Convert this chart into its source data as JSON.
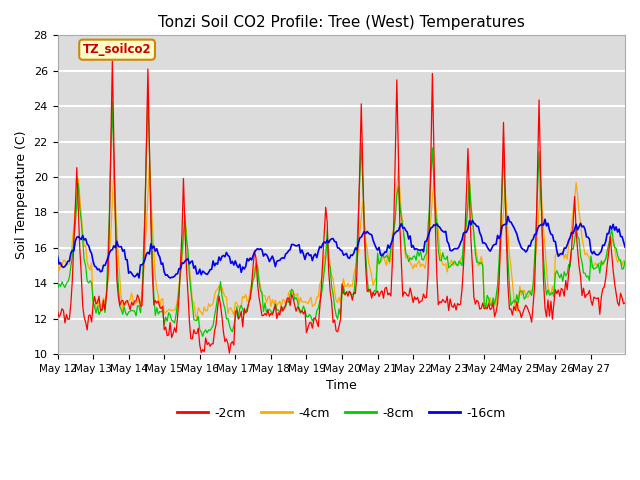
{
  "title": "Tonzi Soil CO2 Profile: Tree (West) Temperatures",
  "xlabel": "Time",
  "ylabel": "Soil Temperature (C)",
  "ylim": [
    10,
    28
  ],
  "bg_color": "#dcdcdc",
  "grid_color": "#ffffff",
  "legend_label": "TZ_soilco2",
  "series_labels": [
    "-2cm",
    "-4cm",
    "-8cm",
    "-16cm"
  ],
  "series_colors": [
    "#ff0000",
    "#ffaa00",
    "#00cc00",
    "#0000ee"
  ],
  "xtick_labels": [
    "May 12",
    "May 13",
    "May 14",
    "May 15",
    "May 16",
    "May 17",
    "May 18",
    "May 19",
    "May 20",
    "May 21",
    "May 22",
    "May 23",
    "May 24",
    "May 25",
    "May 26",
    "May 27"
  ],
  "title_fontsize": 11,
  "tick_fontsize": 7.5
}
